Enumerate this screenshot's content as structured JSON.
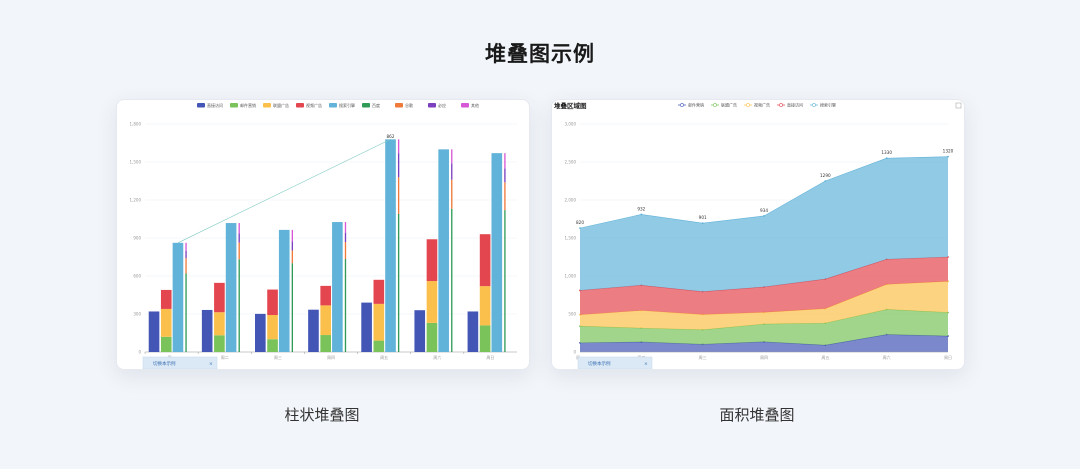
{
  "page": {
    "title": "堆叠图示例",
    "caption_bar": "柱状堆叠图",
    "caption_area": "面积堆叠图"
  },
  "colors": {
    "blue": "#4356b6",
    "green": "#79c35a",
    "yellow": "#fbc04b",
    "red": "#e4464f",
    "sky": "#62b3d9",
    "darkgreen": "#2f9b57",
    "orange": "#ef7a3a",
    "purple": "#7b3fbf",
    "pink": "#d658d6"
  },
  "chart_data": [
    {
      "type": "bar",
      "stacked": true,
      "categories": [
        "周一",
        "周二",
        "周三",
        "周四",
        "周五",
        "周六",
        "周日"
      ],
      "ylim": [
        0,
        1800
      ],
      "yticks": [
        "0",
        "300",
        "600",
        "900",
        "1,200",
        "1,500",
        "1,800"
      ],
      "grid": true,
      "legend_position": "top",
      "legend": [
        "直接访问",
        "邮件营销",
        "联盟广告",
        "视频广告",
        "搜索引擎",
        "百度",
        "谷歌",
        "必应",
        "其他"
      ],
      "stacks": [
        {
          "stack": "A",
          "series": [
            {
              "name": "直接访问",
              "values": [
                320,
                332,
                301,
                334,
                390,
                330,
                320
              ]
            }
          ]
        },
        {
          "stack": "B",
          "series": [
            {
              "name": "邮件营销",
              "values": [
                120,
                132,
                101,
                134,
                90,
                230,
                210
              ]
            },
            {
              "name": "联盟广告",
              "values": [
                220,
                182,
                191,
                234,
                290,
                330,
                310
              ]
            },
            {
              "name": "视频广告",
              "values": [
                150,
                232,
                201,
                154,
                190,
                330,
                410
              ]
            }
          ]
        },
        {
          "stack": "C",
          "series": [
            {
              "name": "搜索引擎",
              "values": [
                862,
                1018,
                964,
                1026,
                1679,
                1600,
                1570
              ]
            }
          ]
        },
        {
          "stack": "D",
          "series": [
            {
              "name": "百度",
              "values": [
                620,
                732,
                701,
                734,
                1090,
                1130,
                1120
              ]
            },
            {
              "name": "谷歌",
              "values": [
                120,
                132,
                101,
                134,
                290,
                230,
                220
              ]
            },
            {
              "name": "必应",
              "values": [
                60,
                72,
                71,
                74,
                190,
                130,
                110
              ]
            },
            {
              "name": "其他",
              "values": [
                62,
                82,
                91,
                84,
                109,
                110,
                120
              ]
            }
          ]
        }
      ],
      "markline_label": "862"
    },
    {
      "type": "area",
      "stacked": true,
      "title": "堆叠区域图",
      "categories": [
        "周一",
        "周二",
        "周三",
        "周四",
        "周五",
        "周六",
        "周日"
      ],
      "ylim": [
        0,
        3000
      ],
      "yticks": [
        "0",
        "500",
        "1,000",
        "1,500",
        "2,000",
        "2,500",
        "3,000"
      ],
      "grid": true,
      "legend_position": "top",
      "series": [
        {
          "name": "邮件营销",
          "values": [
            120,
            132,
            101,
            134,
            90,
            230,
            210
          ]
        },
        {
          "name": "联盟广告",
          "values": [
            220,
            182,
            191,
            234,
            290,
            330,
            310
          ]
        },
        {
          "name": "视频广告",
          "values": [
            150,
            232,
            201,
            154,
            190,
            330,
            410
          ]
        },
        {
          "name": "直接访问",
          "values": [
            320,
            332,
            301,
            334,
            390,
            330,
            320
          ]
        },
        {
          "name": "搜索引擎",
          "values": [
            820,
            932,
            901,
            934,
            1290,
            1330,
            1320
          ]
        }
      ],
      "top_labels": [
        "820",
        "932",
        "901",
        "934",
        "1290",
        "1330",
        "1320"
      ]
    }
  ],
  "zoom_tab": {
    "label": "切换本示例"
  }
}
